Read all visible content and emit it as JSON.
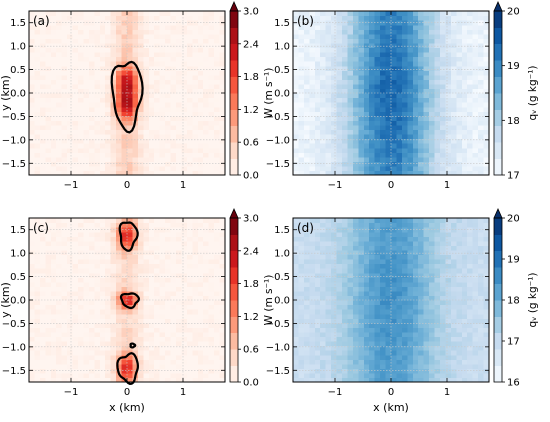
{
  "chart_data": [
    {
      "panel": "(a)",
      "type": "heatmap",
      "field": "W",
      "ylabel": "y (km)",
      "colorbar_label": "W (m s⁻¹)",
      "colormap": "Reds",
      "xlim": [
        -1.75,
        1.75
      ],
      "ylim": [
        -1.75,
        1.75
      ],
      "xticks": [
        -1,
        0,
        1
      ],
      "yticks": [
        -1.5,
        -1.0,
        -0.5,
        0.0,
        0.5,
        1.0,
        1.5
      ],
      "clim": [
        0.0,
        3.0
      ],
      "colorbar_ticks": [
        0.0,
        0.6,
        1.2,
        1.8,
        2.4,
        3.0
      ],
      "colorbar_extend": "max",
      "grid": true,
      "structure": "single elongated updraft core at x≈0 spanning y≈-0.75 to 0.7",
      "peak_value": 2.6,
      "contour": {
        "level": 1.2,
        "regions": [
          {
            "x": 0.0,
            "y": -0.02,
            "hx": 0.26,
            "hy": 0.72
          }
        ]
      }
    },
    {
      "panel": "(b)",
      "type": "heatmap",
      "field": "qv",
      "colorbar_label": "qᵥ (g kg⁻¹)",
      "colormap": "Blues",
      "xlim": [
        -1.75,
        1.75
      ],
      "ylim": [
        -1.75,
        1.75
      ],
      "xticks": [
        -1,
        0,
        1
      ],
      "yticks": [
        -1.5,
        -1.0,
        -0.5,
        0.0,
        0.5,
        1.0,
        1.5
      ],
      "clim": [
        17,
        20
      ],
      "colorbar_ticks": [
        17,
        18,
        19,
        20
      ],
      "colorbar_extend": "max",
      "grid": true,
      "structure": "moist column centred on x≈0, max ≈19.3 near centre",
      "peak_value": 19.3
    },
    {
      "panel": "(c)",
      "type": "heatmap",
      "field": "W",
      "xlabel": "x (km)",
      "ylabel": "y (km)",
      "colorbar_label": "W (m s⁻¹)",
      "colormap": "Reds",
      "xlim": [
        -1.75,
        1.75
      ],
      "ylim": [
        -1.75,
        1.75
      ],
      "xticks": [
        -1,
        0,
        1
      ],
      "yticks": [
        -1.5,
        -1.0,
        -0.5,
        0.0,
        0.5,
        1.0,
        1.5
      ],
      "clim": [
        0.0,
        3.0
      ],
      "colorbar_ticks": [
        0.0,
        0.6,
        1.2,
        1.8,
        2.4,
        3.0
      ],
      "colorbar_extend": "max",
      "grid": true,
      "structure": "three separate updraft cores along x≈0 at y≈1.35, 0.0, -1.4",
      "peak_value": 2.2,
      "contour": {
        "level": 1.2,
        "regions": [
          {
            "x": 0.02,
            "y": 1.38,
            "hx": 0.15,
            "hy": 0.3
          },
          {
            "x": 0.05,
            "y": 0.0,
            "hx": 0.15,
            "hy": 0.15
          },
          {
            "x": 0.02,
            "y": -1.45,
            "hx": 0.18,
            "hy": 0.3
          },
          {
            "x": 0.1,
            "y": -0.97,
            "hx": 0.04,
            "hy": 0.04
          }
        ]
      }
    },
    {
      "panel": "(d)",
      "type": "heatmap",
      "field": "qv",
      "xlabel": "x (km)",
      "colorbar_label": "qᵥ (g kg⁻¹)",
      "colormap": "Blues",
      "xlim": [
        -1.75,
        1.75
      ],
      "ylim": [
        -1.75,
        1.75
      ],
      "xticks": [
        -1,
        0,
        1
      ],
      "yticks": [
        -1.5,
        -1.0,
        -0.5,
        0.0,
        0.5,
        1.0,
        1.5
      ],
      "clim": [
        16,
        20
      ],
      "colorbar_ticks": [
        16,
        17,
        18,
        19,
        20
      ],
      "colorbar_extend": "max",
      "grid": true,
      "structure": "broad moist column centred on x≈0, max ≈18.5",
      "peak_value": 18.5
    }
  ],
  "colors": {
    "reds": [
      "#fff5f0",
      "#fee0d2",
      "#fcbba1",
      "#fc9272",
      "#fb6a4a",
      "#ef3b2c",
      "#cb181d",
      "#a50f15",
      "#67000d"
    ],
    "blues": [
      "#f7fbff",
      "#deebf7",
      "#c6dbef",
      "#9ecae1",
      "#6baed6",
      "#4292c6",
      "#2171b5",
      "#08519c",
      "#08306b"
    ],
    "contour": "#000000",
    "grid": "#c8c8c8"
  }
}
